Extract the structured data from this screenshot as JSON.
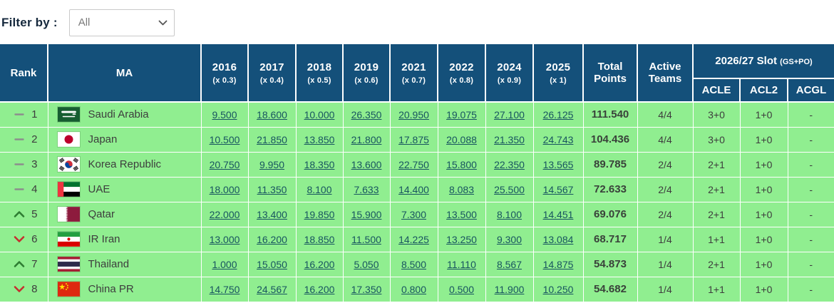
{
  "filter": {
    "label": "Filter by :",
    "selected": "All"
  },
  "colors": {
    "header_bg": "#14507a",
    "row_bg": "#90ee90",
    "link": "#17545f",
    "trend_up": "#2e7d32",
    "trend_down": "#c62f2f",
    "trend_same": "#8d8d8d"
  },
  "table": {
    "headers": {
      "rank": "Rank",
      "ma": "MA",
      "years": [
        {
          "year": "2016",
          "mult": "(x 0.3)"
        },
        {
          "year": "2017",
          "mult": "(x 0.4)"
        },
        {
          "year": "2018",
          "mult": "(x 0.5)"
        },
        {
          "year": "2019",
          "mult": "(x 0.6)"
        },
        {
          "year": "2021",
          "mult": "(x 0.7)"
        },
        {
          "year": "2022",
          "mult": "(x 0.8)"
        },
        {
          "year": "2024",
          "mult": "(x 0.9)"
        },
        {
          "year": "2025",
          "mult": "(x 1)"
        }
      ],
      "total": "Total Points",
      "active": "Active Teams",
      "slot_group": "2026/27 Slot",
      "slot_group_small": "(GS+PO)",
      "slot_cols": [
        "ACLE",
        "ACL2",
        "ACGL"
      ]
    },
    "rows": [
      {
        "trend": "same",
        "rank": "1",
        "flag": "sa",
        "country": "Saudi Arabia",
        "values": [
          "9.500",
          "18.600",
          "10.000",
          "26.350",
          "20.950",
          "19.075",
          "27.100",
          "26.125"
        ],
        "total": "111.540",
        "active": "4/4",
        "acle": "3+0",
        "acl2": "1+0",
        "acgl": "-"
      },
      {
        "trend": "same",
        "rank": "2",
        "flag": "jp",
        "country": "Japan",
        "values": [
          "10.500",
          "21.850",
          "13.850",
          "21.800",
          "17.875",
          "20.088",
          "21.350",
          "24.743"
        ],
        "total": "104.436",
        "active": "4/4",
        "acle": "3+0",
        "acl2": "1+0",
        "acgl": "-"
      },
      {
        "trend": "same",
        "rank": "3",
        "flag": "kr",
        "country": "Korea Republic",
        "values": [
          "20.750",
          "9.950",
          "18.350",
          "13.600",
          "22.750",
          "15.800",
          "22.350",
          "13.565"
        ],
        "total": "89.785",
        "active": "2/4",
        "acle": "2+1",
        "acl2": "1+0",
        "acgl": "-"
      },
      {
        "trend": "same",
        "rank": "4",
        "flag": "ae",
        "country": "UAE",
        "values": [
          "18.000",
          "11.350",
          "8.100",
          "7.633",
          "14.400",
          "8.083",
          "25.500",
          "14.567"
        ],
        "total": "72.633",
        "active": "2/4",
        "acle": "2+1",
        "acl2": "1+0",
        "acgl": "-"
      },
      {
        "trend": "up",
        "rank": "5",
        "flag": "qa",
        "country": "Qatar",
        "values": [
          "22.000",
          "13.400",
          "19.850",
          "15.900",
          "7.300",
          "13.500",
          "8.100",
          "14.451"
        ],
        "total": "69.076",
        "active": "2/4",
        "acle": "2+1",
        "acl2": "1+0",
        "acgl": "-"
      },
      {
        "trend": "down",
        "rank": "6",
        "flag": "ir",
        "country": "IR Iran",
        "values": [
          "13.000",
          "16.200",
          "18.850",
          "11.500",
          "14.225",
          "13.250",
          "9.300",
          "13.084"
        ],
        "total": "68.717",
        "active": "1/4",
        "acle": "1+1",
        "acl2": "1+0",
        "acgl": "-"
      },
      {
        "trend": "up",
        "rank": "7",
        "flag": "th",
        "country": "Thailand",
        "values": [
          "1.000",
          "15.050",
          "16.200",
          "5.050",
          "8.500",
          "11.110",
          "8.567",
          "14.875"
        ],
        "total": "54.873",
        "active": "1/4",
        "acle": "2+1",
        "acl2": "1+0",
        "acgl": "-"
      },
      {
        "trend": "down",
        "rank": "8",
        "flag": "cn",
        "country": "China PR",
        "values": [
          "14.750",
          "24.567",
          "16.200",
          "17.350",
          "0.800",
          "0.500",
          "11.900",
          "10.250"
        ],
        "total": "54.682",
        "active": "1/4",
        "acle": "1+1",
        "acl2": "1+0",
        "acgl": "-"
      }
    ]
  }
}
